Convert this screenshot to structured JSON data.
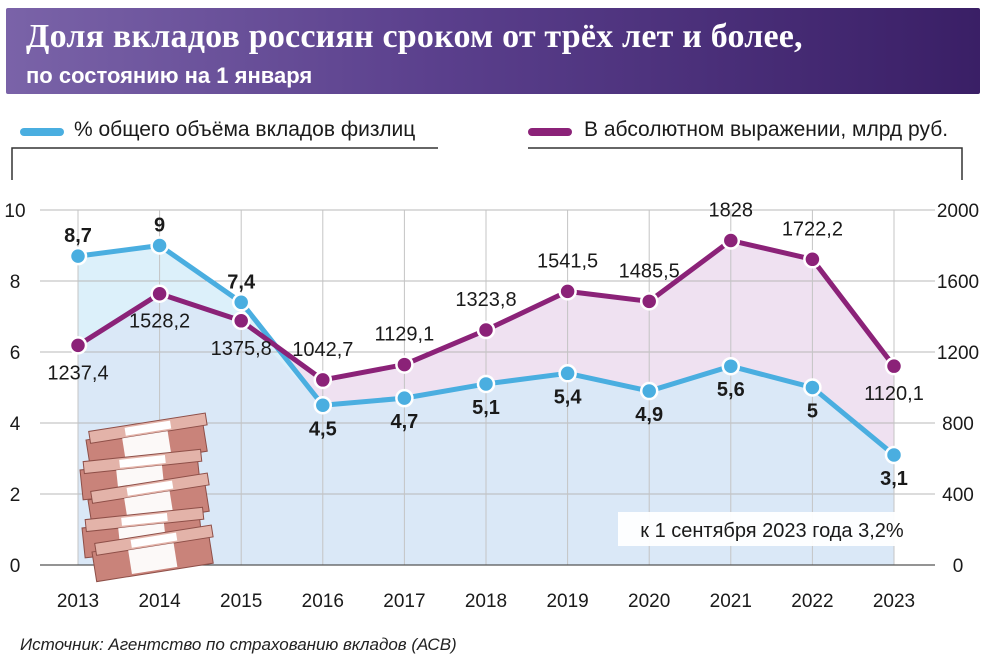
{
  "header": {
    "title": "Доля вкладов россиян сроком от трёх лет и более,",
    "subtitle": "по состоянию на 1 января"
  },
  "legend": {
    "percent_label": "% общего объёма вкладов физлиц",
    "absolute_label": "В абсолютном выражении, млрд руб."
  },
  "note": "к 1 сентября 2023 года 3,2%",
  "source": "Источник: Агентство по страхованию вкладов (АСВ)",
  "colors": {
    "percent_line": "#4aaee0",
    "percent_fill": "#d6e6f6",
    "absolute_line": "#8b2278",
    "absolute_fill": "#ecdcee",
    "header_start": "#7a63a8",
    "header_end": "#3a1f66"
  },
  "icons": [
    "money-stack-icon"
  ],
  "chart_data": {
    "type": "line",
    "categories": [
      "2013",
      "2014",
      "2015",
      "2016",
      "2017",
      "2018",
      "2019",
      "2020",
      "2021",
      "2022",
      "2023"
    ],
    "series": [
      {
        "name": "% общего объёма вкладов физлиц",
        "axis": "left",
        "values": [
          8.7,
          9,
          7.4,
          4.5,
          4.7,
          5.1,
          5.4,
          4.9,
          5.6,
          5,
          3.1
        ],
        "labels": [
          "8,7",
          "9",
          "7,4",
          "4,5",
          "4,7",
          "5,1",
          "5,4",
          "4,9",
          "5,6",
          "5",
          "3,1"
        ]
      },
      {
        "name": "В абсолютном выражении, млрд руб.",
        "axis": "right",
        "values": [
          1237.4,
          1528.2,
          1375.8,
          1042.7,
          1129.1,
          1323.8,
          1541.5,
          1485.5,
          1828,
          1722.2,
          1120.1
        ],
        "labels": [
          "1237,4",
          "1528,2",
          "1375,8",
          "1042,7",
          "1129,1",
          "1323,8",
          "1541,5",
          "1485,5",
          "1828",
          "1722,2",
          "1120,1"
        ]
      }
    ],
    "left_axis": {
      "ylim": [
        0,
        10
      ],
      "ticks": [
        "0",
        "2",
        "4",
        "6",
        "8",
        "10"
      ]
    },
    "right_axis": {
      "ylim": [
        0,
        2000
      ],
      "ticks": [
        "0",
        "400",
        "800",
        "1200",
        "1600",
        "2000"
      ]
    },
    "grid": true,
    "legend_position": "top"
  }
}
